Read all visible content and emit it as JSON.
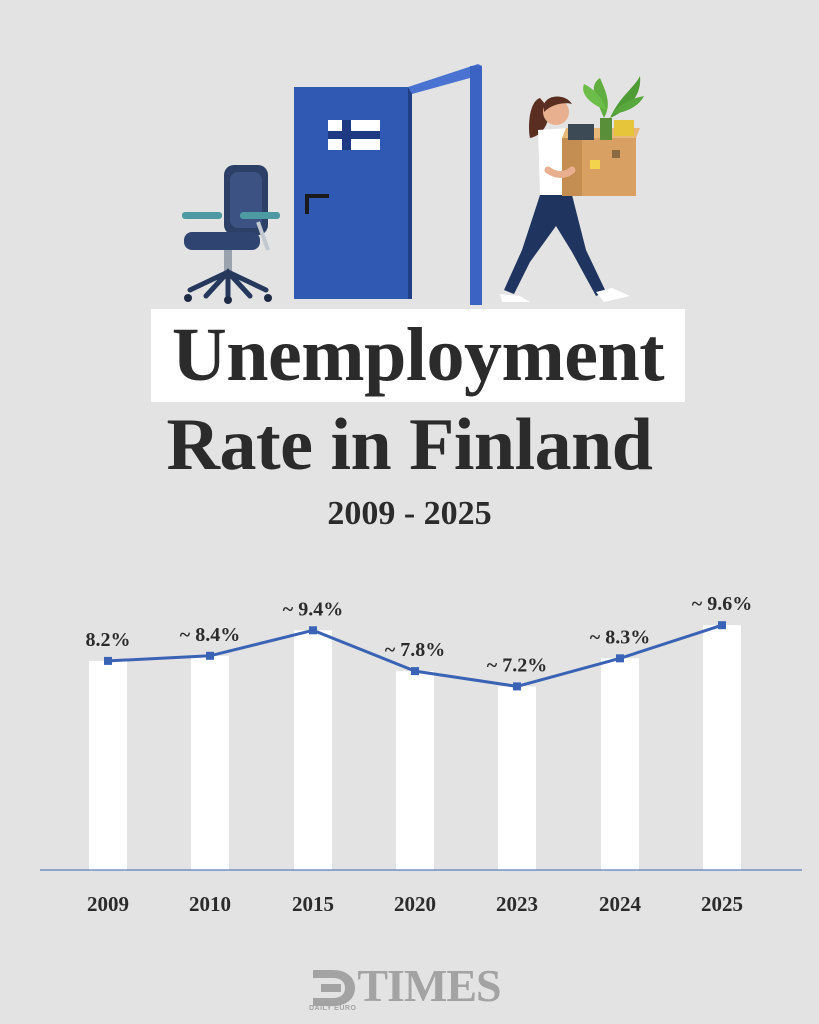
{
  "colors": {
    "background": "#e3e3e3",
    "text": "#2b2b2b",
    "line": "#3a63b5",
    "bar": "#ffffff",
    "door": "#2f59b3",
    "logo": "#a3a3a3"
  },
  "title": {
    "line1": "Unemployment",
    "line2": "Rate in Finland",
    "period": "2009 - 2025"
  },
  "chart_data": {
    "type": "bar",
    "categories": [
      "2009",
      "2010",
      "2015",
      "2020",
      "2023",
      "2024",
      "2025"
    ],
    "values": [
      8.2,
      8.4,
      9.4,
      7.8,
      7.2,
      8.3,
      9.6
    ],
    "data_labels": [
      "8.2%",
      "~ 8.4%",
      "~ 9.4%",
      "~ 7.8%",
      "~ 7.2%",
      "~ 8.3%",
      "~ 9.6%"
    ],
    "overlay": "line",
    "title": "Unemployment Rate in Finland",
    "xlabel": "",
    "ylabel": "",
    "ylim": [
      0,
      10
    ],
    "grid": false,
    "legend": "none"
  },
  "logo": {
    "wordmark": "TIMES",
    "tagline": "DAILY EURO"
  }
}
